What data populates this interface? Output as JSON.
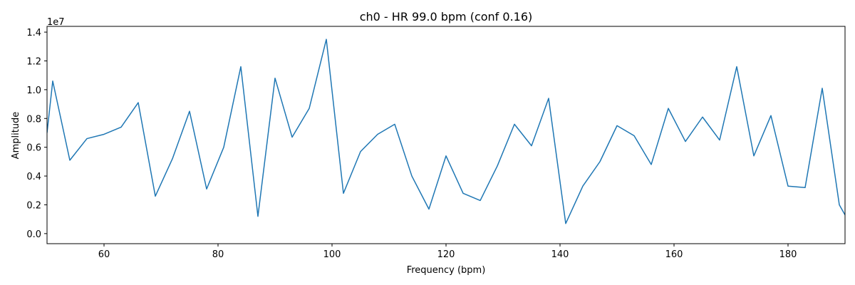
{
  "chart_data": {
    "type": "line",
    "title": "ch0 - HR 99.0 bpm  (conf 0.16)",
    "xlabel": "Frequency (bpm)",
    "ylabel": "Amplitude",
    "y_offset_label": "1e7",
    "xlim": [
      50,
      190
    ],
    "ylim": [
      -0.07,
      1.44
    ],
    "y_scale_note": "values in units of 1e7",
    "x_ticks": [
      60,
      80,
      100,
      120,
      140,
      160,
      180
    ],
    "x_tick_labels": [
      "60",
      "80",
      "100",
      "120",
      "140",
      "160",
      "180"
    ],
    "y_ticks": [
      0.0,
      0.2,
      0.4,
      0.6,
      0.8,
      1.0,
      1.2,
      1.4
    ],
    "y_tick_labels": [
      "0.0",
      "0.2",
      "0.4",
      "0.6",
      "0.8",
      "1.0",
      "1.2",
      "1.4"
    ],
    "grid": false,
    "series": [
      {
        "color": "#1f77b4",
        "x": [
          50,
          51,
          54,
          57,
          60,
          63,
          66,
          69,
          72,
          75,
          78,
          81,
          84,
          87,
          90,
          93,
          96,
          99,
          102,
          105,
          108,
          111,
          114,
          117,
          120,
          123,
          126,
          129,
          132,
          135,
          138,
          141,
          144,
          147,
          150,
          153,
          156,
          159,
          162,
          165,
          168,
          171,
          174,
          177,
          180,
          183,
          186,
          189,
          190
        ],
        "y": [
          0.7,
          1.06,
          0.51,
          0.66,
          0.69,
          0.74,
          0.91,
          0.26,
          0.52,
          0.85,
          0.31,
          0.6,
          1.16,
          0.12,
          1.08,
          0.67,
          0.87,
          1.35,
          0.28,
          0.57,
          0.69,
          0.76,
          0.4,
          0.17,
          0.54,
          0.28,
          0.23,
          0.47,
          0.76,
          0.61,
          0.94,
          0.07,
          0.33,
          0.5,
          0.75,
          0.68,
          0.48,
          0.87,
          0.64,
          0.81,
          0.65,
          1.16,
          0.54,
          0.82,
          0.33,
          0.32,
          1.01,
          0.2,
          0.13
        ]
      }
    ]
  }
}
